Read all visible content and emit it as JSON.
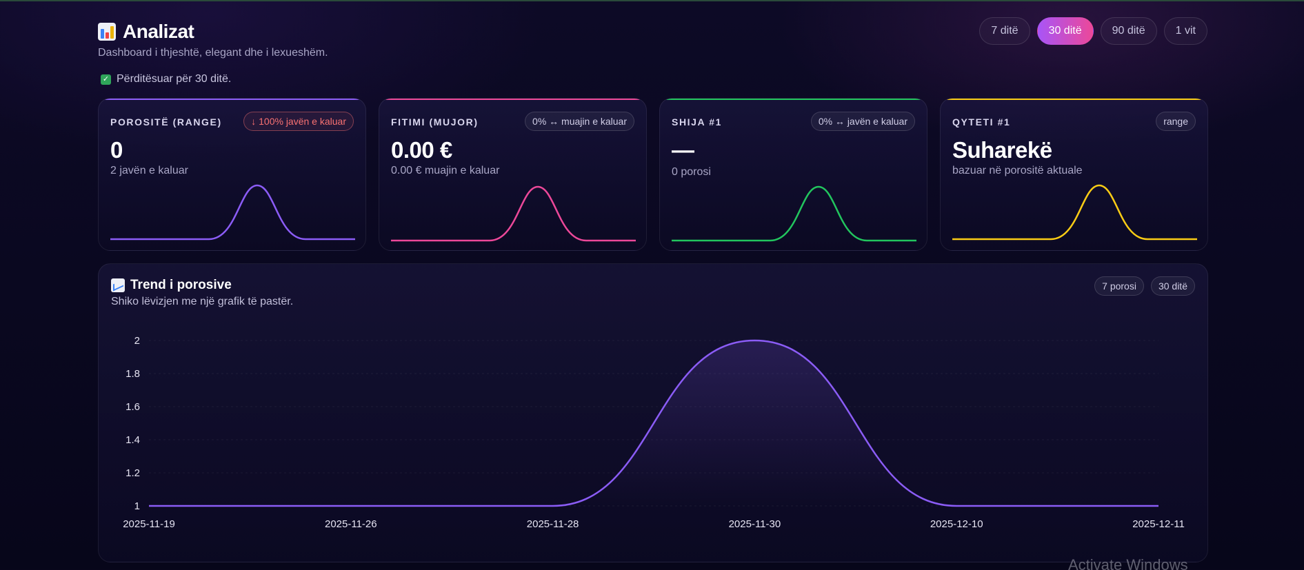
{
  "header": {
    "title": "Analizat",
    "subtitle": "Dashboard i thjeshtë, elegant dhe i lexueshëm.",
    "updated": "Përditësuar për 30 ditë."
  },
  "range_tabs": [
    {
      "label": "7 ditë",
      "active": false
    },
    {
      "label": "30 ditë",
      "active": true
    },
    {
      "label": "90 ditë",
      "active": false
    },
    {
      "label": "1 vit",
      "active": false
    }
  ],
  "colors": {
    "purple": "#8b5cf6",
    "pink": "#ec4899",
    "green": "#22c55e",
    "yellow": "#facc15",
    "negative": "#f87171"
  },
  "kpis": [
    {
      "label": "POROSITË (RANGE)",
      "badge": "↓ 100% javën e kaluar",
      "value": "0",
      "sub": "2 javën e kaluar"
    },
    {
      "label": "FITIMI (MUJOR)",
      "badge": "0% ↔ muajin e kaluar",
      "value": "0.00 €",
      "sub": "0.00 € muajin e kaluar"
    },
    {
      "label": "SHIJA #1",
      "badge": "0% ↔ javën e kaluar",
      "value": "—",
      "sub": "0 porosi"
    },
    {
      "label": "QYTETI #1",
      "badge": "range",
      "value": "Suharekë",
      "sub": "bazuar në porositë aktuale"
    }
  ],
  "trend": {
    "title": "Trend i porosive",
    "subtitle": "Shiko lëvizjen me një grafik të pastër.",
    "badges": [
      "7 porosi",
      "30 ditë"
    ]
  },
  "chart_data": {
    "type": "line",
    "categories": [
      "2025-11-19",
      "2025-11-26",
      "2025-11-28",
      "2025-11-30",
      "2025-12-10",
      "2025-12-11"
    ],
    "series": [
      {
        "values": [
          1,
          1,
          1,
          2,
          1,
          1
        ]
      }
    ],
    "ylim": [
      1,
      2
    ],
    "yticks": [
      "2",
      "1.8",
      "1.6",
      "1.4",
      "1.2",
      "1"
    ],
    "grid": true,
    "smooth": true
  },
  "watermark": "Activate Windows"
}
